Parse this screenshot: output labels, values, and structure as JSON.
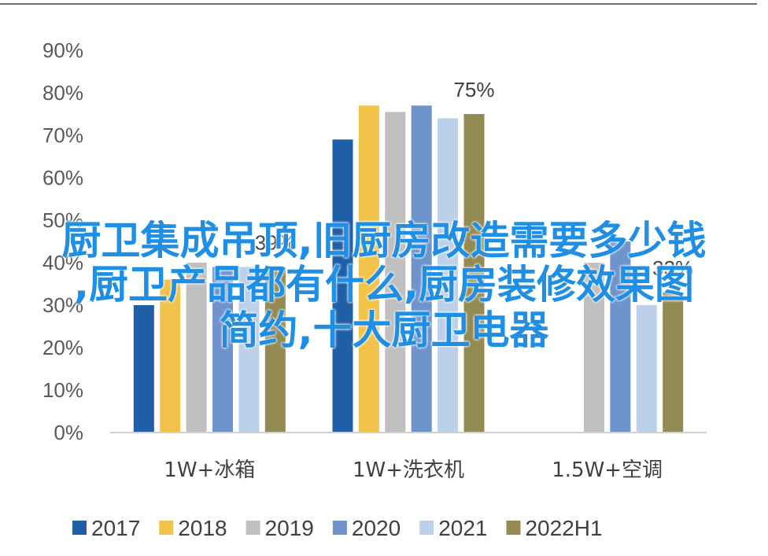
{
  "chart_data": {
    "type": "bar",
    "title": "",
    "xlabel": "",
    "ylabel": "",
    "ylim": [
      0,
      90
    ],
    "yticks": [
      "0%",
      "10%",
      "20%",
      "30%",
      "40%",
      "50%",
      "60%",
      "70%",
      "80%",
      "90%"
    ],
    "grid": false,
    "legend_position": "bottom",
    "categories": [
      "1W+冰箱",
      "1W+洗衣机",
      "1.5W+空调"
    ],
    "series": [
      {
        "name": "2017",
        "color": "#1f5fa8",
        "values": [
          30,
          69,
          0
        ]
      },
      {
        "name": "2018",
        "color": "#f1c34a",
        "values": [
          36,
          77,
          0
        ]
      },
      {
        "name": "2019",
        "color": "#bfbfbf",
        "values": [
          40,
          75.5,
          40
        ]
      },
      {
        "name": "2020",
        "color": "#6f93cd",
        "values": [
          39,
          77,
          45
        ]
      },
      {
        "name": "2021",
        "color": "#bcd0ea",
        "values": [
          39,
          74,
          30
        ]
      },
      {
        "name": "2022H1",
        "color": "#948a54",
        "values": [
          39,
          75,
          33
        ]
      }
    ],
    "annotations": [
      {
        "text": "75%",
        "category_index": 1,
        "series_index": 5
      },
      {
        "text": "39%",
        "category_index": 0,
        "series_index": 5
      },
      {
        "text": "33%",
        "category_index": 2,
        "series_index": 5
      }
    ]
  },
  "overlay": {
    "lines": [
      "厨卫集成吊顶,旧厨房改造需要多少钱",
      ",厨卫产品都有什么,厨房装修效果图",
      "简约,十大厨卫电器"
    ]
  }
}
